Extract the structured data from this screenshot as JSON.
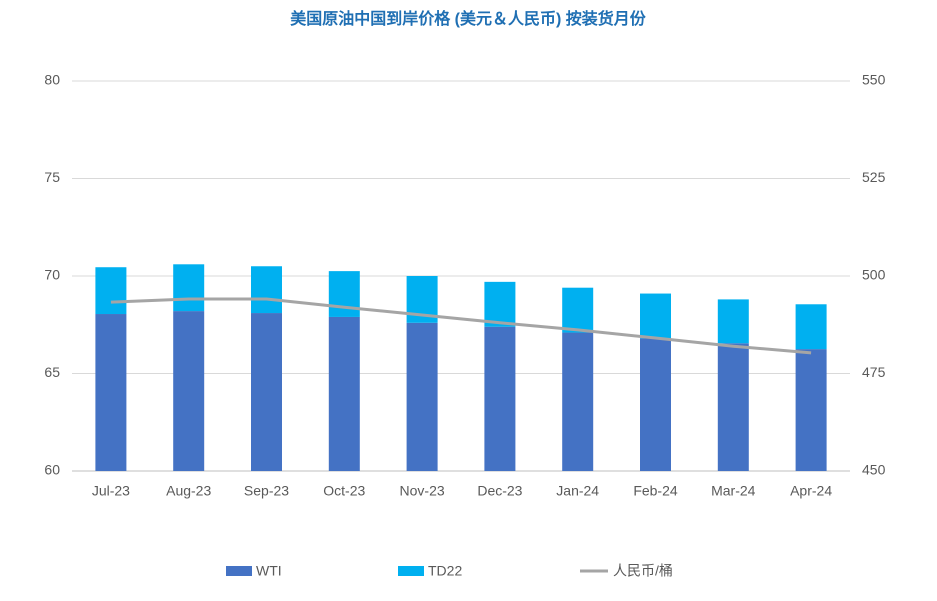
{
  "chart_data": {
    "type": "bar",
    "stacked": true,
    "title": "美国原油中国到岸价格 (美元＆人民币) 按装货月份",
    "categories": [
      "Jul-23",
      "Aug-23",
      "Sep-23",
      "Oct-23",
      "Nov-23",
      "Dec-23",
      "Jan-24",
      "Feb-24",
      "Mar-24",
      "Apr-24"
    ],
    "series": [
      {
        "name": "WTI",
        "color": "#4472c4",
        "type": "bar",
        "values": [
          68.05,
          68.2,
          68.1,
          67.9,
          67.6,
          67.4,
          67.1,
          66.8,
          66.55,
          66.25
        ]
      },
      {
        "name": "TD22",
        "color": "#00b0f0",
        "type": "bar",
        "values": [
          2.4,
          2.4,
          2.4,
          2.35,
          2.4,
          2.3,
          2.3,
          2.3,
          2.25,
          2.3
        ]
      },
      {
        "name": "人民币/桶",
        "color": "#a5a5a5",
        "type": "line",
        "axis": "y2",
        "values": [
          493.3,
          494.1,
          494.1,
          492,
          490,
          488,
          486.2,
          484.1,
          482,
          480.3
        ]
      }
    ],
    "ylim": [
      60,
      80
    ],
    "yticks": [
      60,
      65,
      70,
      75,
      80
    ],
    "y2lim": [
      450,
      550
    ],
    "y2ticks": [
      450,
      475,
      500,
      525,
      550
    ],
    "grid": true,
    "legend": "bottom"
  }
}
